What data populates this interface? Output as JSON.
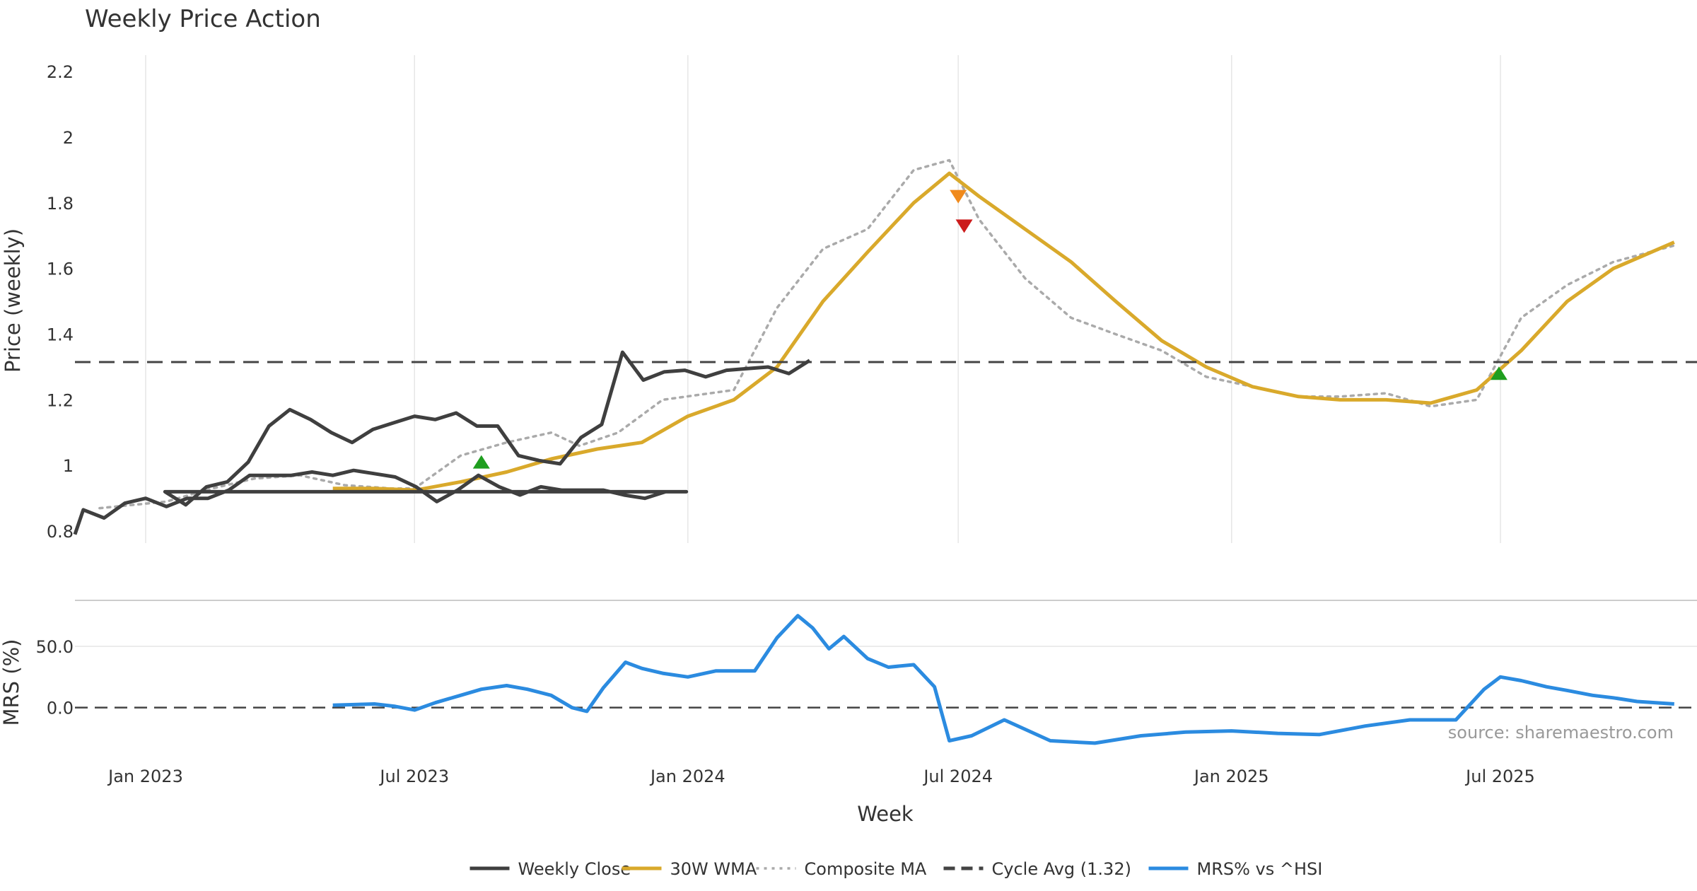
{
  "chart_data": {
    "type": "line",
    "title": "Weekly Price Action",
    "xlabel": "Week",
    "x_ticks": [
      "Jan 2023",
      "Jul 2023",
      "Jan 2024",
      "Jul 2024",
      "Jan 2025",
      "Jul 2025"
    ],
    "x_tick_dates": [
      "2023-01-01",
      "2023-07-01",
      "2024-01-01",
      "2024-07-01",
      "2025-01-01",
      "2025-07-01"
    ],
    "x_range": [
      "2022-11-06",
      "2025-10-26"
    ],
    "price_panel": {
      "ylabel": "Price (weekly)",
      "ylim": [
        0.77,
        2.25
      ],
      "y_ticks": [
        0.8,
        1,
        1.2,
        1.4,
        1.6,
        1.8,
        2,
        2.2
      ],
      "y_tick_labels": [
        "0.8",
        "1",
        "1.2",
        "1.4",
        "1.6",
        "1.8",
        "2",
        "2.2"
      ],
      "cycle_avg": 1.315,
      "series": [
        {
          "name": "Weekly Close",
          "color": "#3f3f3f",
          "style": "solid",
          "points": [
            [
              "2022-11-06",
              0.79
            ],
            [
              "2022-11-20",
              0.865
            ],
            [
              "2022-12-04",
              0.84
            ],
            [
              "2022-12-18",
              0.885
            ],
            [
              "2023-01-01",
              0.9
            ],
            [
              "2023-01-15",
              0.875
            ],
            [
              "2023-01-29",
              0.9
            ],
            [
              "2023-02-12",
              0.9
            ],
            [
              "2023-02-26",
              0.925
            ],
            [
              "2023-03-12",
              0.97
            ],
            [
              "2023-03-26",
              0.97
            ],
            [
              "2023-04-09",
              0.97
            ],
            [
              "2023-04-23",
              0.98
            ],
            [
              "2023-05-07",
              0.97
            ],
            [
              "2023-05-21",
              0.985
            ],
            [
              "2023-06-04",
              0.975
            ],
            [
              "2023-06-18",
              0.965
            ],
            [
              "2023-07-02",
              0.935
            ],
            [
              "2023-07-16",
              0.89
            ],
            [
              "2023-07-30",
              0.925
            ],
            [
              "2023-08-13",
              0.97
            ],
            [
              "2023-08-27",
              0.935
            ],
            [
              "2023-09-10",
              0.91
            ],
            [
              "2023-09-24",
              0.935
            ],
            [
              "2023-10-08",
              0.925
            ],
            [
              "2023-10-22",
              0.925
            ],
            [
              "2023-11-05",
              0.925
            ],
            [
              "2023-11-19",
              0.91
            ],
            [
              "2023-12-03",
              0.9
            ],
            [
              "2023-12-17",
              0.92
            ],
            [
              "2023-12-31",
              0.92
            ],
            [
              "2023-01-14",
              0.92
            ],
            [
              "2023-01-28",
              0.88
            ],
            [
              "2023-02-11",
              0.935
            ],
            [
              "2023-02-25",
              0.95
            ],
            [
              "2023-03-11",
              1.01
            ],
            [
              "2023-03-25",
              1.12
            ],
            [
              "2023-04-08",
              1.17
            ],
            [
              "2023-04-22",
              1.14
            ],
            [
              "2023-05-06",
              1.1
            ],
            [
              "2023-05-20",
              1.07
            ],
            [
              "2023-06-03",
              1.11
            ],
            [
              "2023-06-17",
              1.13
            ],
            [
              "2023-07-01",
              1.15
            ],
            [
              "2023-07-15",
              1.14
            ],
            [
              "2023-07-29",
              1.16
            ],
            [
              "2023-08-12",
              1.12
            ],
            [
              "2023-08-26",
              1.12
            ],
            [
              "2023-09-09",
              1.03
            ],
            [
              "2023-09-23",
              1.015
            ],
            [
              "2023-10-07",
              1.005
            ],
            [
              "2023-10-21",
              1.085
            ],
            [
              "2023-11-04",
              1.125
            ],
            [
              "2023-11-18",
              1.345
            ],
            [
              "2023-12-02",
              1.26
            ],
            [
              "2023-12-16",
              1.285
            ],
            [
              "2023-12-30",
              1.29
            ],
            [
              "2024-01-13",
              1.27
            ],
            [
              "2024-01-27",
              1.29
            ],
            [
              "2024-02-10",
              1.295
            ],
            [
              "2024-02-24",
              1.3
            ],
            [
              "2024-03-09",
              1.28
            ],
            [
              "2024-03-23",
              1.32
            ]
          ]
        },
        {
          "name": "30W WMA",
          "color": "#d9a92b",
          "style": "solid",
          "points": [
            [
              "2023-05-07",
              0.93
            ],
            [
              "2023-06-04",
              0.93
            ],
            [
              "2023-07-02",
              0.925
            ],
            [
              "2023-08-01",
              0.95
            ],
            [
              "2023-09-01",
              0.98
            ],
            [
              "2023-10-01",
              1.02
            ],
            [
              "2023-11-01",
              1.05
            ],
            [
              "2023-12-01",
              1.07
            ],
            [
              "2024-01-01",
              1.15
            ],
            [
              "2024-02-01",
              1.2
            ],
            [
              "2024-03-01",
              1.3
            ],
            [
              "2024-04-01",
              1.5
            ],
            [
              "2024-05-01",
              1.65
            ],
            [
              "2024-06-01",
              1.8
            ],
            [
              "2024-06-25",
              1.89
            ],
            [
              "2024-07-15",
              1.82
            ],
            [
              "2024-08-15",
              1.72
            ],
            [
              "2024-09-15",
              1.62
            ],
            [
              "2024-10-15",
              1.5
            ],
            [
              "2024-11-15",
              1.38
            ],
            [
              "2024-12-15",
              1.3
            ],
            [
              "2025-01-15",
              1.24
            ],
            [
              "2025-02-15",
              1.21
            ],
            [
              "2025-03-15",
              1.2
            ],
            [
              "2025-04-15",
              1.2
            ],
            [
              "2025-05-15",
              1.19
            ],
            [
              "2025-06-15",
              1.23
            ],
            [
              "2025-07-15",
              1.35
            ],
            [
              "2025-08-15",
              1.5
            ],
            [
              "2025-09-15",
              1.6
            ],
            [
              "2025-10-26",
              1.68
            ]
          ]
        },
        {
          "name": "Composite MA",
          "color": "#aaaaaa",
          "style": "dotted",
          "points": [
            [
              "2022-12-01",
              0.87
            ],
            [
              "2023-01-15",
              0.89
            ],
            [
              "2023-02-15",
              0.93
            ],
            [
              "2023-03-15",
              0.96
            ],
            [
              "2023-04-15",
              0.97
            ],
            [
              "2023-05-15",
              0.94
            ],
            [
              "2023-06-15",
              0.93
            ],
            [
              "2023-07-01",
              0.93
            ],
            [
              "2023-08-01",
              1.03
            ],
            [
              "2023-09-01",
              1.07
            ],
            [
              "2023-10-01",
              1.1
            ],
            [
              "2023-10-20",
              1.06
            ],
            [
              "2023-11-15",
              1.1
            ],
            [
              "2023-12-15",
              1.2
            ],
            [
              "2024-02-01",
              1.23
            ],
            [
              "2024-03-01",
              1.48
            ],
            [
              "2024-04-01",
              1.66
            ],
            [
              "2024-05-01",
              1.72
            ],
            [
              "2024-06-01",
              1.9
            ],
            [
              "2024-06-25",
              1.93
            ],
            [
              "2024-07-15",
              1.75
            ],
            [
              "2024-08-15",
              1.57
            ],
            [
              "2024-09-15",
              1.45
            ],
            [
              "2024-10-15",
              1.4
            ],
            [
              "2024-11-15",
              1.35
            ],
            [
              "2024-12-15",
              1.27
            ],
            [
              "2025-01-15",
              1.24
            ],
            [
              "2025-02-15",
              1.21
            ],
            [
              "2025-03-15",
              1.21
            ],
            [
              "2025-04-15",
              1.22
            ],
            [
              "2025-05-15",
              1.18
            ],
            [
              "2025-06-15",
              1.2
            ],
            [
              "2025-07-15",
              1.45
            ],
            [
              "2025-08-15",
              1.55
            ],
            [
              "2025-09-15",
              1.62
            ],
            [
              "2025-10-26",
              1.67
            ]
          ]
        },
        {
          "name": "Cycle Avg (1.32)",
          "color": "#444444",
          "style": "dashed",
          "points": [
            [
              "2022-11-06",
              1.315
            ],
            [
              "2025-10-26",
              1.315
            ]
          ]
        }
      ],
      "markers": [
        {
          "type": "up",
          "color": "#1f9e1f",
          "date": "2023-08-15",
          "value": 1.01
        },
        {
          "type": "down",
          "color": "#f08a1c",
          "date": "2024-07-01",
          "value": 1.82
        },
        {
          "type": "down",
          "color": "#cc1c1c",
          "date": "2024-07-05",
          "value": 1.73
        },
        {
          "type": "up",
          "color": "#1f9e1f",
          "date": "2025-06-30",
          "value": 1.28
        }
      ]
    },
    "mrs_panel": {
      "ylabel": "MRS (%)",
      "ylim": [
        -40,
        80
      ],
      "y_ticks": [
        0,
        50
      ],
      "y_tick_labels": [
        "0.0",
        "50.0"
      ],
      "zero_line": 0,
      "series": [
        {
          "name": "MRS% vs ^HSI",
          "color": "#2b8be0",
          "style": "solid",
          "points": [
            [
              "2023-05-07",
              2
            ],
            [
              "2023-06-04",
              3
            ],
            [
              "2023-06-18",
              1
            ],
            [
              "2023-07-01",
              -2
            ],
            [
              "2023-07-15",
              4
            ],
            [
              "2023-08-01",
              10
            ],
            [
              "2023-08-15",
              15
            ],
            [
              "2023-09-01",
              18
            ],
            [
              "2023-09-15",
              15
            ],
            [
              "2023-10-01",
              10
            ],
            [
              "2023-10-15",
              0
            ],
            [
              "2023-10-25",
              -3
            ],
            [
              "2023-11-05",
              16
            ],
            [
              "2023-11-20",
              37
            ],
            [
              "2023-12-01",
              32
            ],
            [
              "2023-12-15",
              28
            ],
            [
              "2024-01-01",
              25
            ],
            [
              "2024-01-20",
              30
            ],
            [
              "2024-02-15",
              30
            ],
            [
              "2024-03-01",
              57
            ],
            [
              "2024-03-15",
              75
            ],
            [
              "2024-03-25",
              65
            ],
            [
              "2024-04-05",
              48
            ],
            [
              "2024-04-15",
              58
            ],
            [
              "2024-05-01",
              40
            ],
            [
              "2024-05-15",
              33
            ],
            [
              "2024-06-01",
              35
            ],
            [
              "2024-06-15",
              17
            ],
            [
              "2024-06-25",
              -27
            ],
            [
              "2024-07-10",
              -23
            ],
            [
              "2024-08-01",
              -10
            ],
            [
              "2024-09-01",
              -27
            ],
            [
              "2024-10-01",
              -29
            ],
            [
              "2024-11-01",
              -23
            ],
            [
              "2024-12-01",
              -20
            ],
            [
              "2025-01-01",
              -19
            ],
            [
              "2025-02-01",
              -21
            ],
            [
              "2025-03-01",
              -22
            ],
            [
              "2025-04-01",
              -15
            ],
            [
              "2025-05-01",
              -10
            ],
            [
              "2025-06-01",
              -10
            ],
            [
              "2025-06-20",
              15
            ],
            [
              "2025-07-01",
              25
            ],
            [
              "2025-07-15",
              22
            ],
            [
              "2025-08-01",
              17
            ],
            [
              "2025-08-15",
              14
            ],
            [
              "2025-09-01",
              10
            ],
            [
              "2025-09-15",
              8
            ],
            [
              "2025-10-01",
              5
            ],
            [
              "2025-10-26",
              3
            ]
          ]
        }
      ]
    },
    "source": "source: sharemaestro.com",
    "legend": [
      {
        "label": "Weekly Close",
        "color": "#3f3f3f",
        "style": "solid"
      },
      {
        "label": "30W WMA",
        "color": "#d9a92b",
        "style": "solid"
      },
      {
        "label": "Composite MA",
        "color": "#aaaaaa",
        "style": "dotted"
      },
      {
        "label": "Cycle Avg (1.32)",
        "color": "#444444",
        "style": "dashed"
      },
      {
        "label": "MRS% vs ^HSI",
        "color": "#2b8be0",
        "style": "solid"
      }
    ],
    "legend_position": "bottom-center",
    "grid": {
      "x": true,
      "y": false
    }
  }
}
